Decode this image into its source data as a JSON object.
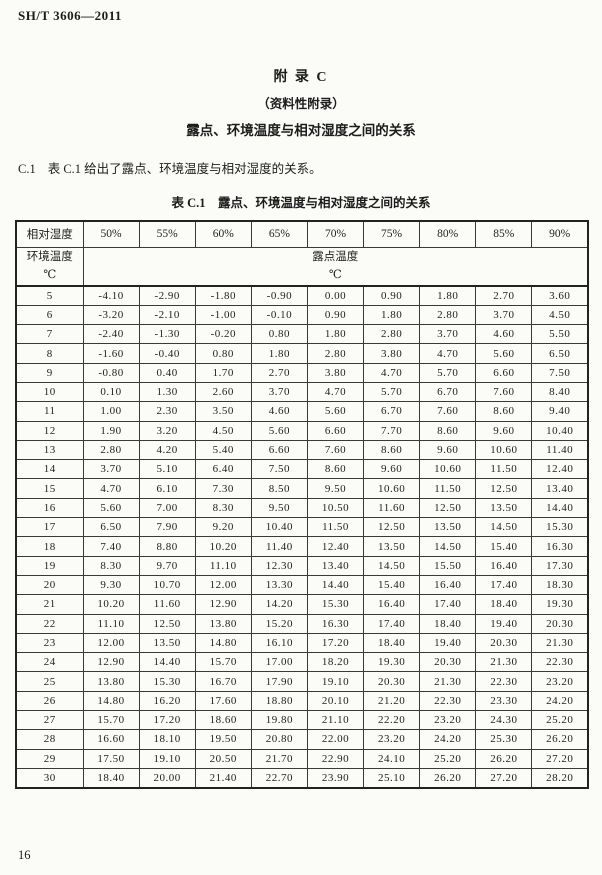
{
  "header": {
    "standard_number": "SH/T 3606—2011"
  },
  "appendix": {
    "title": "附  录  C",
    "subtitle": "（资料性附录）",
    "heading": "露点、环境温度与相对湿度之间的关系"
  },
  "clause": {
    "number": "C.1",
    "text": "表 C.1 给出了露点、环境温度与相对湿度的关系。"
  },
  "table": {
    "caption": "表 C.1　露点、环境温度与相对湿度之间的关系",
    "corner_header": "相对湿度",
    "humidity_headers": [
      "50%",
      "55%",
      "60%",
      "65%",
      "70%",
      "75%",
      "80%",
      "85%",
      "90%"
    ],
    "row_header": {
      "line1": "环境温度",
      "line2": "℃"
    },
    "span_header": {
      "line1": "露点温度",
      "line2": "℃"
    },
    "rows": [
      {
        "temp": "5",
        "values": [
          "-4.10",
          "-2.90",
          "-1.80",
          "-0.90",
          "0.00",
          "0.90",
          "1.80",
          "2.70",
          "3.60"
        ]
      },
      {
        "temp": "6",
        "values": [
          "-3.20",
          "-2.10",
          "-1.00",
          "-0.10",
          "0.90",
          "1.80",
          "2.80",
          "3.70",
          "4.50"
        ]
      },
      {
        "temp": "7",
        "values": [
          "-2.40",
          "-1.30",
          "-0.20",
          "0.80",
          "1.80",
          "2.80",
          "3.70",
          "4.60",
          "5.50"
        ]
      },
      {
        "temp": "8",
        "values": [
          "-1.60",
          "-0.40",
          "0.80",
          "1.80",
          "2.80",
          "3.80",
          "4.70",
          "5.60",
          "6.50"
        ]
      },
      {
        "temp": "9",
        "values": [
          "-0.80",
          "0.40",
          "1.70",
          "2.70",
          "3.80",
          "4.70",
          "5.70",
          "6.60",
          "7.50"
        ]
      },
      {
        "temp": "10",
        "values": [
          "0.10",
          "1.30",
          "2.60",
          "3.70",
          "4.70",
          "5.70",
          "6.70",
          "7.60",
          "8.40"
        ]
      },
      {
        "temp": "11",
        "values": [
          "1.00",
          "2.30",
          "3.50",
          "4.60",
          "5.60",
          "6.70",
          "7.60",
          "8.60",
          "9.40"
        ]
      },
      {
        "temp": "12",
        "values": [
          "1.90",
          "3.20",
          "4.50",
          "5.60",
          "6.60",
          "7.70",
          "8.60",
          "9.60",
          "10.40"
        ]
      },
      {
        "temp": "13",
        "values": [
          "2.80",
          "4.20",
          "5.40",
          "6.60",
          "7.60",
          "8.60",
          "9.60",
          "10.60",
          "11.40"
        ]
      },
      {
        "temp": "14",
        "values": [
          "3.70",
          "5.10",
          "6.40",
          "7.50",
          "8.60",
          "9.60",
          "10.60",
          "11.50",
          "12.40"
        ]
      },
      {
        "temp": "15",
        "values": [
          "4.70",
          "6.10",
          "7.30",
          "8.50",
          "9.50",
          "10.60",
          "11.50",
          "12.50",
          "13.40"
        ]
      },
      {
        "temp": "16",
        "values": [
          "5.60",
          "7.00",
          "8.30",
          "9.50",
          "10.50",
          "11.60",
          "12.50",
          "13.50",
          "14.40"
        ]
      },
      {
        "temp": "17",
        "values": [
          "6.50",
          "7.90",
          "9.20",
          "10.40",
          "11.50",
          "12.50",
          "13.50",
          "14.50",
          "15.30"
        ]
      },
      {
        "temp": "18",
        "values": [
          "7.40",
          "8.80",
          "10.20",
          "11.40",
          "12.40",
          "13.50",
          "14.50",
          "15.40",
          "16.30"
        ]
      },
      {
        "temp": "19",
        "values": [
          "8.30",
          "9.70",
          "11.10",
          "12.30",
          "13.40",
          "14.50",
          "15.50",
          "16.40",
          "17.30"
        ]
      },
      {
        "temp": "20",
        "values": [
          "9.30",
          "10.70",
          "12.00",
          "13.30",
          "14.40",
          "15.40",
          "16.40",
          "17.40",
          "18.30"
        ]
      },
      {
        "temp": "21",
        "values": [
          "10.20",
          "11.60",
          "12.90",
          "14.20",
          "15.30",
          "16.40",
          "17.40",
          "18.40",
          "19.30"
        ]
      },
      {
        "temp": "22",
        "values": [
          "11.10",
          "12.50",
          "13.80",
          "15.20",
          "16.30",
          "17.40",
          "18.40",
          "19.40",
          "20.30"
        ]
      },
      {
        "temp": "23",
        "values": [
          "12.00",
          "13.50",
          "14.80",
          "16.10",
          "17.20",
          "18.40",
          "19.40",
          "20.30",
          "21.30"
        ]
      },
      {
        "temp": "24",
        "values": [
          "12.90",
          "14.40",
          "15.70",
          "17.00",
          "18.20",
          "19.30",
          "20.30",
          "21.30",
          "22.30"
        ]
      },
      {
        "temp": "25",
        "values": [
          "13.80",
          "15.30",
          "16.70",
          "17.90",
          "19.10",
          "20.30",
          "21.30",
          "22.30",
          "23.20"
        ]
      },
      {
        "temp": "26",
        "values": [
          "14.80",
          "16.20",
          "17.60",
          "18.80",
          "20.10",
          "21.20",
          "22.30",
          "23.30",
          "24.20"
        ]
      },
      {
        "temp": "27",
        "values": [
          "15.70",
          "17.20",
          "18.60",
          "19.80",
          "21.10",
          "22.20",
          "23.20",
          "24.30",
          "25.20"
        ]
      },
      {
        "temp": "28",
        "values": [
          "16.60",
          "18.10",
          "19.50",
          "20.80",
          "22.00",
          "23.20",
          "24.20",
          "25.30",
          "26.20"
        ]
      },
      {
        "temp": "29",
        "values": [
          "17.50",
          "19.10",
          "20.50",
          "21.70",
          "22.90",
          "24.10",
          "25.20",
          "26.20",
          "27.20"
        ]
      },
      {
        "temp": "30",
        "values": [
          "18.40",
          "20.00",
          "21.40",
          "22.70",
          "23.90",
          "25.10",
          "26.20",
          "27.20",
          "28.20"
        ]
      }
    ]
  },
  "page_number": "16"
}
